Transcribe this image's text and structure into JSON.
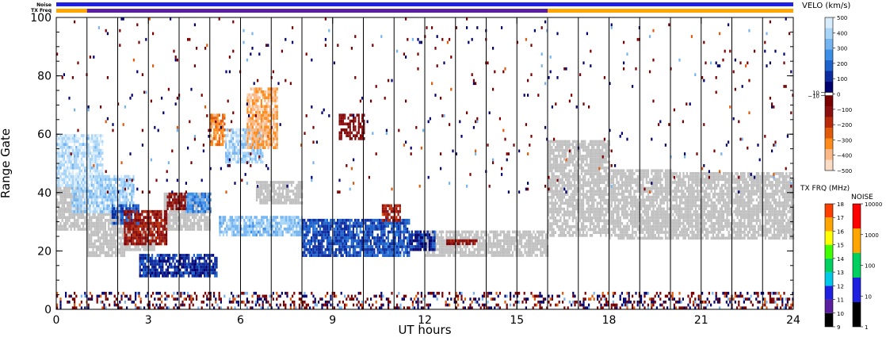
{
  "chart_data": [
    {
      "type": "heatmap",
      "title": "",
      "xlabel": "UT hours",
      "ylabel": "Range Gate",
      "xlim": [
        0,
        24
      ],
      "ylim": [
        0,
        100
      ],
      "x_ticks": [
        "0",
        "3",
        "6",
        "9",
        "12",
        "15",
        "18",
        "21",
        "24"
      ],
      "y_ticks": [
        "0",
        "20",
        "40",
        "60",
        "80",
        "100"
      ],
      "scan_boundaries_ut": [
        1,
        2,
        3,
        4,
        5,
        6,
        7,
        8,
        9,
        10,
        11,
        12,
        13,
        14,
        15,
        16,
        17,
        18,
        19,
        20,
        21,
        22,
        23
      ],
      "status_bars": {
        "noise_label": "Noise",
        "txfreq_label": "TX Freq",
        "noise_color": "#2020e0",
        "txfreq_segments": [
          {
            "start_ut": 0,
            "end_ut": 1,
            "color": "#ffa500"
          },
          {
            "start_ut": 1,
            "end_ut": 16,
            "color": "#5a1fa0"
          },
          {
            "start_ut": 16,
            "end_ut": 24,
            "color": "#ffa500"
          }
        ]
      },
      "ground_scatter_color": "#c0c0c0",
      "scatter_regions": [
        {
          "feature": "ground scatter",
          "ut": [
            0,
            1
          ],
          "gate": [
            27,
            42
          ],
          "value": "gs"
        },
        {
          "feature": "ground scatter",
          "ut": [
            1,
            2.2
          ],
          "gate": [
            18,
            33
          ],
          "value": "gs"
        },
        {
          "feature": "ground scatter",
          "ut": [
            2.2,
            3.2
          ],
          "gate": [
            20,
            30
          ],
          "value": "gs"
        },
        {
          "feature": "ground scatter",
          "ut": [
            3.5,
            5
          ],
          "gate": [
            27,
            40
          ],
          "value": "gs"
        },
        {
          "feature": "ground scatter",
          "ut": [
            6.5,
            8
          ],
          "gate": [
            36,
            44
          ],
          "value": "gs"
        },
        {
          "feature": "ground scatter",
          "ut": [
            12,
            16
          ],
          "gate": [
            18,
            27
          ],
          "value": "gs"
        },
        {
          "feature": "ground scatter",
          "ut": [
            16,
            18
          ],
          "gate": [
            25,
            58
          ],
          "value": "gs"
        },
        {
          "feature": "ground scatter",
          "ut": [
            18,
            20
          ],
          "gate": [
            24,
            48
          ],
          "value": "gs"
        },
        {
          "feature": "ground scatter",
          "ut": [
            20,
            24
          ],
          "gate": [
            24,
            47
          ],
          "value": "gs"
        },
        {
          "feature": "positive velocity band",
          "ut": [
            5.3,
            8
          ],
          "gate": [
            25,
            32
          ],
          "value": 350
        },
        {
          "feature": "positive velocity band",
          "ut": [
            8,
            11.5
          ],
          "gate": [
            18,
            31
          ],
          "value": 150
        },
        {
          "feature": "positive velocity band",
          "ut": [
            11.5,
            12.3
          ],
          "gate": [
            20,
            27
          ],
          "value": 100
        },
        {
          "feature": "positive velocity band",
          "ut": [
            2.7,
            5.2
          ],
          "gate": [
            11,
            19
          ],
          "value": 100
        },
        {
          "feature": "positive velocity band",
          "ut": [
            0.5,
            2.5
          ],
          "gate": [
            33,
            46
          ],
          "value": 380
        },
        {
          "feature": "positive velocity band",
          "ut": [
            1.8,
            2.7
          ],
          "gate": [
            29,
            36
          ],
          "value": 150
        },
        {
          "feature": "positive velocity band",
          "ut": [
            4.2,
            5
          ],
          "gate": [
            33,
            40
          ],
          "value": 250
        },
        {
          "feature": "positive velocity band",
          "ut": [
            0,
            1.5
          ],
          "gate": [
            42,
            60
          ],
          "value": 420
        },
        {
          "feature": "positive velocity band",
          "ut": [
            5.5,
            6.7
          ],
          "gate": [
            50,
            62
          ],
          "value": 380
        },
        {
          "feature": "negative velocity patch",
          "ut": [
            2.2,
            3.6
          ],
          "gate": [
            22,
            34
          ],
          "value": -120
        },
        {
          "feature": "negative velocity patch",
          "ut": [
            3.6,
            4.2
          ],
          "gate": [
            34,
            40
          ],
          "value": -100
        },
        {
          "feature": "negative velocity patch",
          "ut": [
            12.7,
            13.7
          ],
          "gate": [
            22,
            24
          ],
          "value": -100
        },
        {
          "feature": "negative velocity patch",
          "ut": [
            10.6,
            11.2
          ],
          "gate": [
            30,
            36
          ],
          "value": -150
        },
        {
          "feature": "negative velocity patch",
          "ut": [
            5,
            5.5
          ],
          "gate": [
            56,
            67
          ],
          "value": -300
        },
        {
          "feature": "negative velocity patch",
          "ut": [
            6.2,
            7.2
          ],
          "gate": [
            55,
            76
          ],
          "value": -380
        },
        {
          "feature": "negative velocity patch",
          "ut": [
            9.2,
            10
          ],
          "gate": [
            58,
            67
          ],
          "value": -60
        },
        {
          "feature": "near-range scatter",
          "ut": [
            0,
            24
          ],
          "gate": [
            0,
            6
          ],
          "value": "mixed"
        },
        {
          "feature": "sparse noise",
          "ut": [
            0,
            24
          ],
          "gate": [
            40,
            100
          ],
          "value": "mixed"
        }
      ]
    },
    {
      "type": "heatmap",
      "title": "VELO (km/s)",
      "colorbar": "velocity",
      "ticks": [
        "500",
        "400",
        "300",
        "200",
        "100",
        "10",
        "0",
        "−10",
        "−100",
        "−200",
        "−300",
        "−400",
        "−500"
      ],
      "values": [
        -500,
        500
      ],
      "colors": [
        "#fbdcc4",
        "#f9b886",
        "#ff8c1a",
        "#e05a0a",
        "#b82a0a",
        "#8b0f0f",
        "#7a0000",
        "#ffffff",
        "#00006e",
        "#0c2b9e",
        "#1e62cc",
        "#3c8ee6",
        "#74b4f0",
        "#a8d4f8",
        "#d8ecfc"
      ]
    },
    {
      "type": "heatmap",
      "title": "TX FRQ (MHz)",
      "colorbar": "frequency",
      "ticks": [
        "18",
        "17",
        "16",
        "15",
        "14",
        "13",
        "12",
        "11",
        "10",
        "9"
      ],
      "values": [
        9,
        18
      ],
      "colors": [
        "#000000",
        "#5a1fa0",
        "#2020e0",
        "#00c8e8",
        "#00d060",
        "#40ff00",
        "#ffff00",
        "#ffa500",
        "#ff4000",
        "#e00000"
      ]
    },
    {
      "type": "heatmap",
      "title": "NOISE",
      "colorbar": "noise",
      "ticks": [
        "10000",
        "1000",
        "100",
        "10",
        "1"
      ],
      "values": [
        1,
        10000
      ],
      "colors": [
        "#000000",
        "#2020e0",
        "#00d060",
        "#ffa500",
        "#ff0000"
      ]
    }
  ]
}
